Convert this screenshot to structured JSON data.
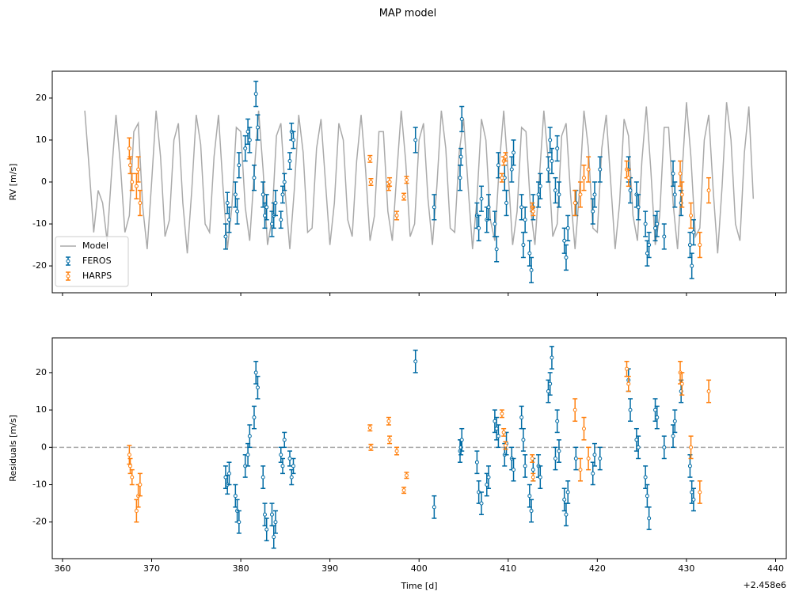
{
  "title": "MAP model",
  "chart_data": [
    {
      "type": "errorbar",
      "ylabel": "RV [m/s]",
      "xlim": [
        358.85,
        441.2
      ],
      "ylim": [
        -26.4,
        26.4
      ],
      "xticks": [
        360,
        370,
        380,
        390,
        400,
        410,
        420,
        430,
        440
      ],
      "xtick_labels": false,
      "yticks": [
        -20,
        -10,
        0,
        10,
        20
      ],
      "legend": "lower left",
      "series": [
        {
          "name": "Model",
          "kind": "line",
          "color": "#aaaaaa",
          "x": [
            362.5,
            363,
            363.5,
            364,
            364.5,
            365,
            365.5,
            366,
            366.5,
            367,
            367.5,
            368,
            368.5,
            369,
            369.5,
            370,
            370.5,
            371,
            371.5,
            372,
            372.5,
            373,
            373.5,
            374,
            374.5,
            375,
            375.5,
            376,
            376.5,
            377,
            377.5,
            378,
            378.5,
            379,
            379.5,
            380,
            380.5,
            381,
            381.5,
            382,
            382.5,
            383,
            383.5,
            384,
            384.5,
            385,
            385.5,
            386,
            386.5,
            387,
            387.5,
            388,
            388.5,
            389,
            389.5,
            390,
            390.5,
            391,
            391.5,
            392,
            392.5,
            393,
            393.5,
            394,
            394.5,
            395,
            395.5,
            396,
            396.5,
            397,
            397.5,
            398,
            398.5,
            399,
            399.5,
            400,
            400.5,
            401,
            401.5,
            402,
            402.5,
            403,
            403.5,
            404,
            404.5,
            405,
            405.5,
            406,
            406.5,
            407,
            407.5,
            408,
            408.5,
            409,
            409.5,
            410,
            410.5,
            411,
            411.5,
            412,
            412.5,
            413,
            413.5,
            414,
            414.5,
            415,
            415.5,
            416,
            416.5,
            417,
            417.5,
            418,
            418.5,
            419,
            419.5,
            420,
            420.5,
            421,
            421.5,
            422,
            422.5,
            423,
            423.5,
            424,
            424.5,
            425,
            425.5,
            426,
            426.5,
            427,
            427.5,
            428,
            428.5,
            429,
            429.5,
            430,
            430.5,
            431,
            431.5,
            432,
            432.5,
            433,
            433.5,
            434,
            434.5,
            435,
            435.5,
            436,
            436.5,
            437,
            437.5
          ],
          "values": [
            17,
            3,
            -12,
            -2,
            -5,
            -14,
            2,
            16,
            4,
            -12,
            -8,
            12,
            14,
            -6,
            -16,
            0,
            17,
            6,
            -13,
            -9,
            10,
            14,
            -5,
            -17,
            -2,
            16,
            9,
            -10,
            -12,
            6,
            16,
            -1,
            -16,
            -6,
            13,
            12,
            -6,
            -14,
            2,
            17,
            3,
            -15,
            -9,
            11,
            14,
            -3,
            -16,
            -2,
            16,
            7,
            -12,
            -11,
            8,
            15,
            0,
            -15,
            -5,
            14,
            10,
            -9,
            -13,
            5,
            16,
            3,
            -14,
            -8,
            12,
            12,
            -7,
            -14,
            2,
            17,
            5,
            -13,
            -10,
            10,
            14,
            -4,
            -15,
            -1,
            17,
            8,
            -11,
            -12,
            7,
            15,
            -1,
            -16,
            -4,
            15,
            10,
            -9,
            -14,
            4,
            17,
            2,
            -15,
            -7,
            13,
            12,
            -6,
            -15,
            1,
            17,
            5,
            -13,
            -10,
            11,
            14,
            -3,
            -16,
            -2,
            17,
            8,
            -11,
            -12,
            8,
            16,
            0,
            -16,
            -5,
            15,
            11,
            -8,
            -14,
            5,
            18,
            3,
            -15,
            -8,
            13,
            13,
            -5,
            -16,
            2,
            19,
            6,
            -13,
            -11,
            10,
            16,
            -2,
            -17,
            -1,
            19,
            10,
            -10,
            -14,
            7,
            18,
            -4
          ]
        },
        {
          "name": "FEROS",
          "color": "#006ba4",
          "x": [
            378.3,
            378.5,
            378.7,
            379.4,
            379.6,
            379.8,
            380.5,
            380.8,
            381.0,
            381.5,
            381.7,
            381.9,
            382.5,
            382.7,
            382.9,
            383.5,
            383.7,
            383.9,
            384.5,
            384.7,
            384.9,
            385.5,
            385.7,
            385.9,
            399.6,
            401.7,
            404.6,
            404.7,
            404.8,
            406.5,
            406.7,
            407.0,
            407.6,
            407.8,
            408.5,
            408.7,
            408.9,
            409.6,
            409.8,
            410.4,
            410.6,
            411.5,
            411.7,
            411.9,
            412.4,
            412.6,
            412.8,
            413.4,
            413.6,
            414.5,
            414.7,
            414.9,
            415.3,
            415.5,
            415.7,
            416.3,
            416.5,
            416.7,
            417.6,
            419.5,
            419.7,
            420.3,
            423.5,
            423.7,
            424.4,
            424.6,
            425.4,
            425.6,
            425.8,
            426.5,
            426.7,
            427.5,
            428.5,
            428.7,
            429.4,
            430.4,
            430.6,
            430.8
          ],
          "values": [
            -13,
            -5,
            -9,
            -3,
            -7,
            4,
            8,
            12,
            10,
            1,
            21,
            13,
            -3,
            -8,
            -6,
            -10,
            -8,
            -5,
            -9,
            -3,
            0,
            5,
            12,
            10,
            10,
            -6,
            1,
            6,
            15,
            -8,
            -11,
            -4,
            -9,
            -6,
            -10,
            -16,
            4,
            1,
            -5,
            3,
            7,
            -6,
            -15,
            -9,
            -17,
            -21,
            -6,
            -3,
            -1,
            3,
            10,
            5,
            -2,
            8,
            -3,
            -14,
            -18,
            -11,
            -5,
            -7,
            -3,
            3,
            3,
            -2,
            -3,
            -6,
            -10,
            -17,
            -15,
            -11,
            -10,
            -13,
            2,
            -3,
            -5,
            -15,
            -20,
            -12
          ],
          "errors": [
            3,
            2.5,
            3,
            3,
            3,
            3,
            3,
            3,
            3,
            3,
            3,
            3,
            3,
            3,
            3,
            3,
            3,
            3,
            2,
            2,
            2,
            2,
            2,
            2,
            3,
            3,
            3,
            2,
            3,
            3,
            3,
            3,
            3,
            3,
            3,
            3,
            3,
            3,
            3,
            3,
            3,
            3,
            3,
            3,
            3,
            3,
            3,
            3,
            3,
            3,
            3,
            3,
            3,
            3,
            3,
            3,
            3,
            3,
            3,
            3,
            3,
            3,
            3,
            3,
            3,
            3,
            3,
            3,
            3,
            3,
            3,
            3,
            3,
            3,
            3,
            3,
            3,
            3
          ]
        },
        {
          "name": "HARPS",
          "color": "#ff800e",
          "x": [
            367.5,
            367.6,
            367.8,
            368.3,
            368.5,
            368.7,
            394.5,
            394.6,
            396.6,
            396.7,
            397.5,
            398.3,
            398.6,
            409.3,
            409.5,
            409.7,
            412.7,
            412.8,
            417.5,
            418.1,
            418.5,
            419.0,
            423.3,
            423.5,
            429.3,
            429.5,
            430.5,
            431.5,
            432.5
          ],
          "values": [
            8,
            4,
            0,
            -1,
            3,
            -5,
            5.5,
            0,
            -1,
            0,
            -8,
            -3.5,
            0.5,
            1,
            5,
            6,
            -6,
            -7,
            -5,
            -3,
            1,
            3,
            3,
            1,
            2,
            -3,
            -8,
            -15,
            -2
          ],
          "errors": [
            2.5,
            2,
            2,
            3,
            3,
            3,
            0.8,
            0.8,
            1,
            1,
            1,
            0.8,
            0.8,
            1,
            1,
            1,
            1,
            1,
            3,
            3,
            3,
            3,
            2,
            2,
            3,
            3,
            3,
            3,
            3
          ]
        }
      ]
    },
    {
      "type": "errorbar",
      "xlabel": "Time [d]",
      "ylabel": "Residuals [m/s]",
      "x_offset_label": "+2.458e6",
      "xlim": [
        358.85,
        441.2
      ],
      "ylim": [
        -29.8,
        29.3
      ],
      "xticks": [
        360,
        370,
        380,
        390,
        400,
        410,
        420,
        430,
        440
      ],
      "xtick_labels": true,
      "yticks": [
        -20,
        -10,
        0,
        10,
        20
      ],
      "hline": 0,
      "series": [
        {
          "name": "FEROS",
          "color": "#006ba4",
          "x": [
            378.3,
            378.5,
            378.7,
            379.4,
            379.6,
            379.8,
            380.5,
            380.8,
            381.0,
            381.5,
            381.7,
            381.9,
            382.5,
            382.7,
            382.9,
            383.5,
            383.7,
            383.9,
            384.5,
            384.7,
            384.9,
            385.5,
            385.7,
            385.9,
            399.6,
            401.7,
            404.6,
            404.7,
            404.8,
            406.5,
            406.7,
            407.0,
            407.6,
            407.8,
            408.5,
            408.7,
            408.9,
            409.6,
            409.8,
            410.4,
            410.6,
            411.5,
            411.7,
            411.9,
            412.4,
            412.6,
            412.8,
            413.4,
            413.6,
            414.5,
            414.7,
            414.9,
            415.3,
            415.5,
            415.7,
            416.3,
            416.5,
            416.7,
            417.6,
            419.5,
            419.7,
            420.3,
            423.5,
            423.7,
            424.4,
            424.6,
            425.4,
            425.6,
            425.8,
            426.5,
            426.7,
            427.5,
            428.5,
            428.7,
            429.4,
            430.4,
            430.6,
            430.8
          ],
          "values": [
            -8,
            -10,
            -7,
            -13,
            -17,
            -20,
            -5,
            -2,
            3,
            8,
            20,
            16,
            -8,
            -18,
            -22,
            -18,
            -24,
            -20,
            -2,
            -5,
            2,
            -3,
            -8,
            -5,
            23,
            -16,
            -1,
            0,
            2,
            -4,
            -12,
            -15,
            -10,
            -8,
            7,
            5,
            3,
            -2,
            1,
            -3,
            -6,
            8,
            2,
            -5,
            -13,
            -17,
            -6,
            -5,
            -8,
            15,
            17,
            24,
            -3,
            7,
            -1,
            -14,
            -18,
            -12,
            -3,
            -7,
            -2,
            -3,
            18,
            10,
            2,
            0,
            -8,
            -13,
            -19,
            10,
            8,
            0,
            3,
            7,
            15,
            -5,
            -12,
            -14
          ],
          "errors": [
            3,
            2.5,
            3,
            3,
            3,
            3,
            3,
            3,
            3,
            3,
            3,
            3,
            3,
            3,
            3,
            3,
            3,
            3,
            2,
            2,
            2,
            2,
            2,
            2,
            3,
            3,
            3,
            2,
            3,
            3,
            3,
            3,
            3,
            3,
            3,
            3,
            3,
            3,
            3,
            3,
            3,
            3,
            3,
            3,
            3,
            3,
            3,
            3,
            3,
            3,
            3,
            3,
            3,
            3,
            3,
            3,
            3,
            3,
            3,
            3,
            3,
            3,
            3,
            3,
            3,
            3,
            3,
            3,
            3,
            3,
            3,
            3,
            3,
            3,
            3,
            3,
            3,
            3
          ]
        },
        {
          "name": "HARPS",
          "color": "#ff800e",
          "x": [
            367.5,
            367.6,
            367.8,
            368.3,
            368.5,
            368.7,
            394.5,
            394.6,
            396.6,
            396.7,
            397.5,
            398.3,
            398.6,
            409.3,
            409.5,
            409.7,
            412.7,
            412.8,
            417.5,
            418.1,
            418.5,
            419.0,
            423.3,
            423.5,
            429.3,
            429.5,
            430.5,
            431.5,
            432.5
          ],
          "values": [
            -2,
            -5,
            -8,
            -17,
            -13,
            -10,
            5.2,
            0,
            7,
            2,
            -1,
            -11.5,
            -7.5,
            9,
            4,
            0.5,
            -3,
            -8,
            10,
            -6,
            5,
            -3,
            21,
            17,
            20,
            17,
            0,
            -12,
            15
          ],
          "errors": [
            2.5,
            2,
            2,
            3,
            3,
            3,
            0.8,
            0.8,
            1,
            1,
            1,
            0.8,
            0.8,
            1,
            1,
            1,
            1,
            1,
            3,
            3,
            3,
            3,
            2,
            2,
            3,
            3,
            3,
            3,
            3
          ]
        }
      ]
    }
  ]
}
